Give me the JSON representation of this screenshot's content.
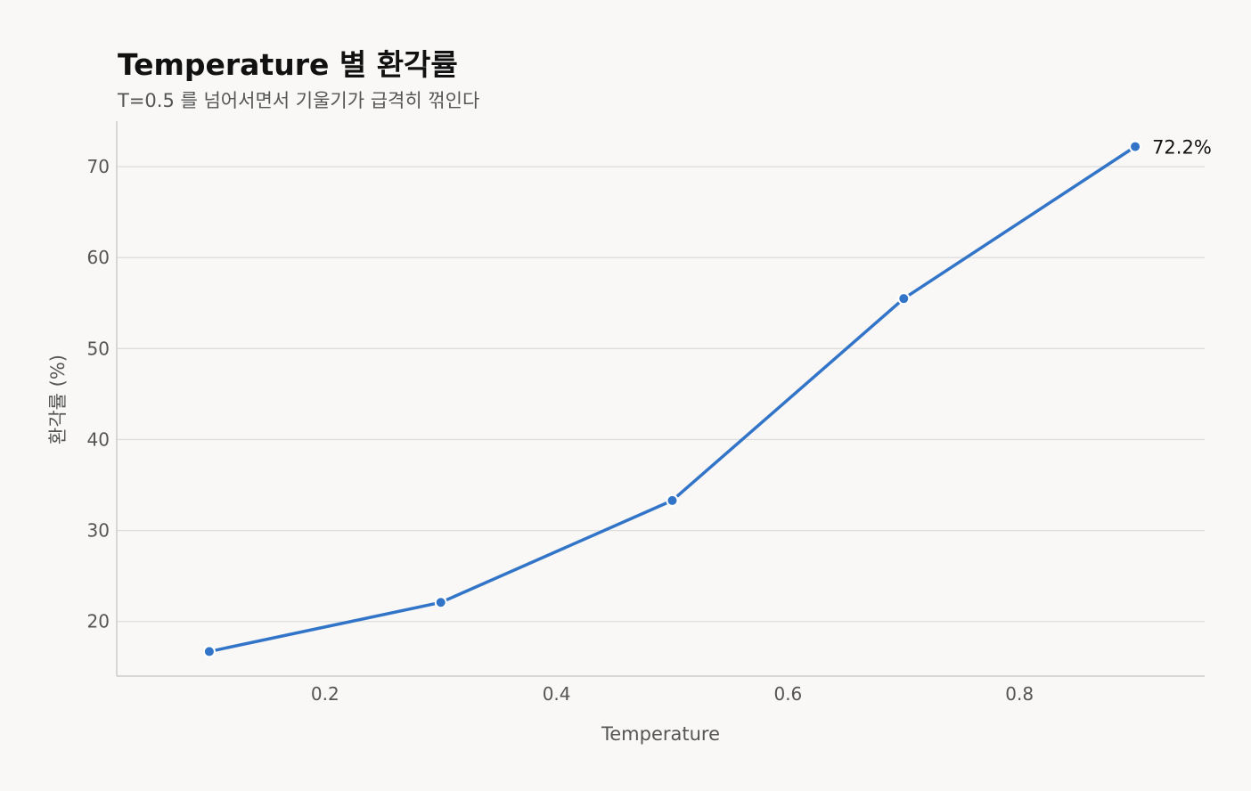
{
  "chart_data": {
    "type": "line",
    "title": "Temperature 별 환각률",
    "subtitle": "T=0.5 를 넘어서면서 기울기가 급격히 꺾인다",
    "xlabel": "Temperature",
    "ylabel": "환각률 (%)",
    "x": [
      0.1,
      0.3,
      0.5,
      0.7,
      0.9
    ],
    "series": [
      {
        "values": [
          16.7,
          22.1,
          33.3,
          55.5,
          72.2
        ]
      }
    ],
    "xlim": [
      0.02,
      0.96
    ],
    "ylim": [
      14,
      75
    ],
    "xticks": [
      0.2,
      0.4,
      0.6,
      0.8
    ],
    "xtick_labels": [
      "0.2",
      "0.4",
      "0.6",
      "0.8"
    ],
    "yticks": [
      20,
      30,
      40,
      50,
      60,
      70
    ],
    "ytick_labels": [
      "20",
      "30",
      "40",
      "50",
      "60",
      "70"
    ],
    "grid": "horizontal",
    "annotation": {
      "x": 0.9,
      "y": 72.2,
      "text": "72.2%"
    },
    "line_color": "#3275c8",
    "grid_color": "#dddddd",
    "axis_color": "#cccccc"
  }
}
